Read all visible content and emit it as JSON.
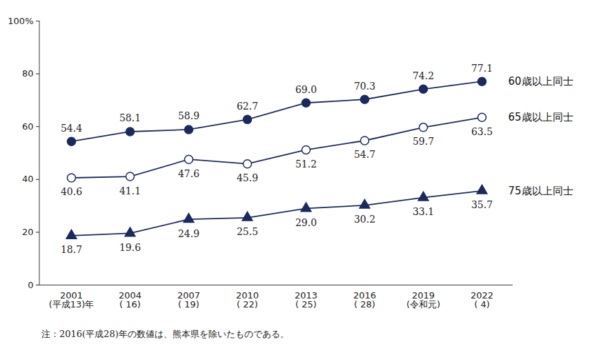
{
  "chart_data": {
    "type": "line",
    "note": "注：2016(平成28)年の数値は、熊本県を除いたものである。",
    "categories": [
      "2001\n(平成13)年",
      "2004\n( 16)",
      "2007\n( 19)",
      "2010\n( 22)",
      "2013\n( 25)",
      "2016\n( 28)",
      "2019\n(令和元)",
      "2022\n( 4)"
    ],
    "series": [
      {
        "name": "60歳以上同士",
        "color": "#1b2a5e",
        "marker": "circle",
        "values": [
          54.4,
          58.1,
          58.9,
          62.7,
          69.0,
          70.3,
          74.2,
          77.1
        ],
        "value_labels": [
          "54.4",
          "58.1",
          "58.9",
          "62.7",
          "69.0",
          "70.3",
          "74.2",
          "77.1"
        ]
      },
      {
        "name": "65歳以上同士",
        "color": "#1b2a5e",
        "marker": "open_circle",
        "values": [
          40.6,
          41.1,
          47.6,
          45.9,
          51.2,
          54.7,
          59.7,
          63.5
        ],
        "value_labels": [
          "40.6",
          "41.1",
          "47.6",
          "45.9",
          "51.2",
          "54.7",
          "59.7",
          "63.5"
        ]
      },
      {
        "name": "75歳以上同士",
        "color": "#1b2a5e",
        "marker": "triangle",
        "values": [
          18.7,
          19.6,
          24.9,
          25.5,
          29.0,
          30.2,
          33.1,
          35.7
        ],
        "value_labels": [
          "18.7",
          "19.6",
          "24.9",
          "25.5",
          "29.0",
          "30.2",
          "33.1",
          "35.7"
        ]
      }
    ],
    "ylim": [
      0,
      100
    ],
    "yticks": [
      0,
      20,
      40,
      60,
      80,
      {
        "value": 100,
        "label": "100%"
      }
    ],
    "grid": false,
    "data_labels": true
  }
}
